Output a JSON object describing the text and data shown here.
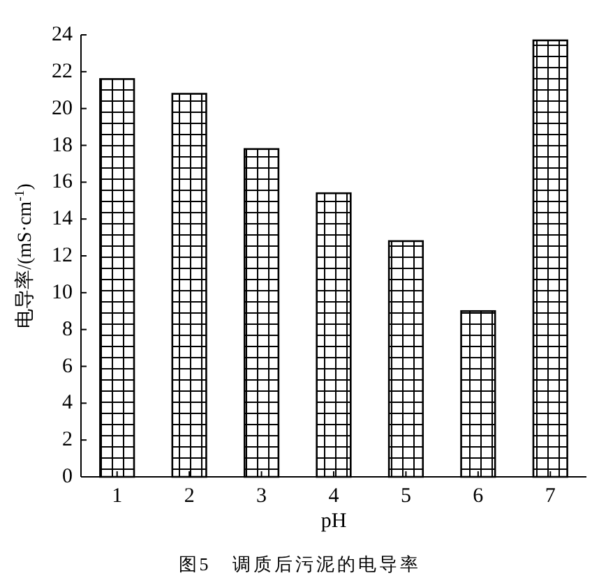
{
  "chart_data": {
    "type": "bar",
    "xlabel": "pH",
    "ylabel": "电导率/(mS·cm$^{-1}$)",
    "annotations": [
      "图5　调质后污泥的电导率"
    ],
    "categories": [
      "1",
      "2",
      "3",
      "4",
      "5",
      "6",
      "7"
    ],
    "values": [
      21.6,
      20.8,
      17.8,
      15.4,
      12.8,
      9.0,
      23.7
    ],
    "ylim": [
      0,
      24
    ],
    "yticks": [
      0,
      2,
      4,
      6,
      8,
      10,
      12,
      14,
      16,
      18,
      20,
      22,
      24
    ],
    "grid": false
  }
}
